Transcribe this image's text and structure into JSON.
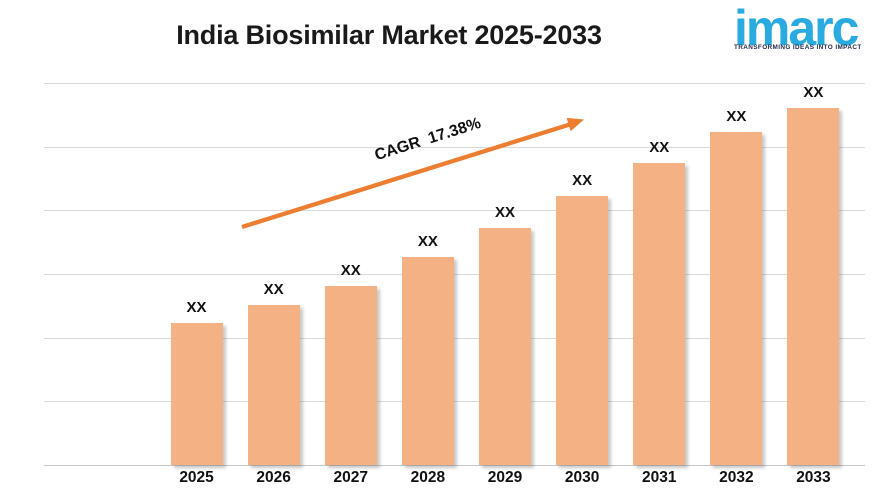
{
  "title": "India Biosimilar Market 2025-2033",
  "logo": {
    "brand": "imarc",
    "tagline": "TRANSFORMING IDEAS INTO IMPACT",
    "brand_color": "#29ABE2",
    "tagline_color": "#1F2A44"
  },
  "annotation": {
    "cagr_label": "CAGR  17.38%"
  },
  "colors": {
    "bar_fill": "#F4B183",
    "arrow": "#ED7D31",
    "gridline": "#D9D9D9",
    "axis_line": "#C6C6C6",
    "title_text": "#1A1A1A",
    "label_text": "#111111"
  },
  "chart_data": {
    "type": "bar",
    "title": "India Biosimilar Market 2025-2033",
    "categories": [
      "2025",
      "2026",
      "2027",
      "2028",
      "2029",
      "2030",
      "2031",
      "2032",
      "2033"
    ],
    "bar_labels": [
      "XX",
      "XX",
      "XX",
      "XX",
      "XX",
      "XX",
      "XX",
      "XX",
      "XX"
    ],
    "values_relative_pct": [
      37.2,
      41.9,
      46.9,
      54.5,
      62.0,
      70.4,
      79.1,
      87.2,
      93.5
    ],
    "values_note": "Actual values are masked as 'XX' in the chart; values_relative_pct give bar heights as percent of the plot-area height",
    "cagr_pct": 17.38,
    "xlabel": "",
    "ylabel": "",
    "grid": "horizontal",
    "y_axis_labels_visible": false,
    "legend": false
  }
}
